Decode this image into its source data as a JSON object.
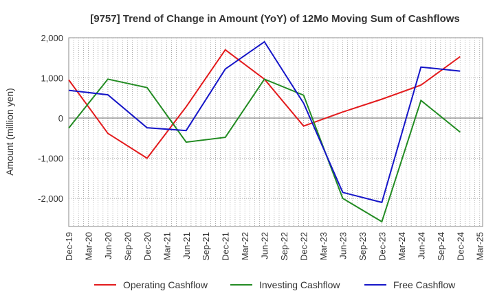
{
  "chart_data": {
    "type": "line",
    "title": "[9757]  Trend of Change in Amount (YoY) of 12Mo Moving Sum of Cashflows",
    "xlabel": "",
    "ylabel": "Amount (million yen)",
    "ylim": [
      -2700,
      2000
    ],
    "yticks": [
      2000,
      1000,
      0,
      -1000,
      -2000
    ],
    "ytick_labels": [
      "2,000",
      "1,000",
      "0",
      "-1,000",
      "-2,000"
    ],
    "categories": [
      "Dec-19",
      "Mar-20",
      "Jun-20",
      "Sep-20",
      "Dec-20",
      "Mar-21",
      "Jun-21",
      "Sep-21",
      "Dec-21",
      "Mar-22",
      "Jun-22",
      "Sep-22",
      "Dec-22",
      "Mar-23",
      "Jun-23",
      "Sep-23",
      "Dec-23",
      "Mar-24",
      "Jun-24",
      "Sep-24",
      "Dec-24",
      "Mar-25"
    ],
    "grid": true,
    "series": [
      {
        "name": "Operating Cashflow",
        "color": "#e31a1c",
        "x": [
          "Dec-19",
          "Jun-20",
          "Dec-20",
          "Jun-21",
          "Dec-21",
          "Jun-22",
          "Dec-22",
          "Jun-23",
          "Dec-23",
          "Jun-24",
          "Dec-24"
        ],
        "values": [
          950,
          -380,
          -1000,
          280,
          1700,
          970,
          -200,
          150,
          470,
          820,
          1530
        ]
      },
      {
        "name": "Investing Cashflow",
        "color": "#228b22",
        "x": [
          "Dec-19",
          "Jun-20",
          "Dec-20",
          "Jun-21",
          "Dec-21",
          "Jun-22",
          "Dec-22",
          "Jun-23",
          "Dec-23",
          "Jun-24",
          "Dec-24"
        ],
        "values": [
          -250,
          970,
          760,
          -600,
          -480,
          970,
          570,
          -2000,
          -2580,
          440,
          -350
        ]
      },
      {
        "name": "Free Cashflow",
        "color": "#1515c8",
        "x": [
          "Dec-19",
          "Jun-20",
          "Dec-20",
          "Jun-21",
          "Dec-21",
          "Jun-22",
          "Dec-22",
          "Jun-23",
          "Dec-23",
          "Jun-24",
          "Dec-24"
        ],
        "values": [
          690,
          580,
          -240,
          -310,
          1220,
          1900,
          370,
          -1850,
          -2100,
          1270,
          1170
        ]
      }
    ],
    "legend_position": "bottom"
  }
}
